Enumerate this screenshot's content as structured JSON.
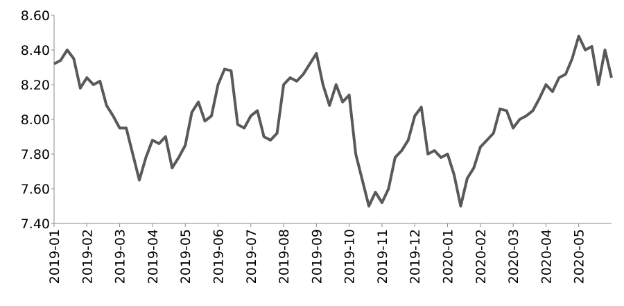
{
  "chart_data": {
    "type": "line",
    "categories": [
      "2019-01",
      null,
      null,
      null,
      null,
      "2019-02",
      null,
      null,
      null,
      null,
      "2019-03",
      null,
      null,
      null,
      null,
      "2019-04",
      null,
      null,
      null,
      null,
      "2019-05",
      null,
      null,
      null,
      null,
      "2019-06",
      null,
      null,
      null,
      null,
      "2019-07",
      null,
      null,
      null,
      null,
      "2019-08",
      null,
      null,
      null,
      null,
      "2019-09",
      null,
      null,
      null,
      null,
      "2019-10",
      null,
      null,
      null,
      null,
      "2019-11",
      null,
      null,
      null,
      null,
      "2019-12",
      null,
      null,
      null,
      null,
      "2020-01",
      null,
      null,
      null,
      null,
      "2020-02",
      null,
      null,
      null,
      null,
      "2020-03",
      null,
      null,
      null,
      null,
      "2020-04",
      null,
      null,
      null,
      null,
      "2020-05",
      null,
      null,
      null,
      null,
      null
    ],
    "values": [
      8.32,
      8.34,
      8.4,
      8.35,
      8.18,
      8.24,
      8.2,
      8.22,
      8.08,
      8.02,
      7.95,
      7.95,
      7.8,
      7.65,
      7.78,
      7.88,
      7.86,
      7.9,
      7.72,
      7.78,
      7.85,
      8.04,
      8.1,
      7.99,
      8.02,
      8.2,
      8.29,
      8.28,
      7.97,
      7.95,
      8.02,
      8.05,
      7.9,
      7.88,
      7.92,
      8.2,
      8.24,
      8.22,
      8.26,
      8.32,
      8.38,
      8.2,
      8.08,
      8.2,
      8.1,
      8.14,
      7.8,
      7.65,
      7.5,
      7.58,
      7.52,
      7.6,
      7.78,
      7.82,
      7.88,
      8.02,
      8.07,
      7.8,
      7.82,
      7.78,
      7.8,
      7.68,
      7.5,
      7.66,
      7.72,
      7.84,
      7.88,
      7.92,
      8.06,
      8.05,
      7.95,
      8.0,
      8.02,
      8.05,
      8.12,
      8.2,
      8.16,
      8.24,
      8.26,
      8.35,
      8.48,
      8.4,
      8.42,
      8.2,
      8.4,
      8.24
    ],
    "color": "#595959",
    "ylim": [
      7.4,
      8.6
    ],
    "yticks": [
      {
        "value": 7.4,
        "label": "7.40"
      },
      {
        "value": 7.6,
        "label": "7.60"
      },
      {
        "value": 7.8,
        "label": "7.80"
      },
      {
        "value": 8.0,
        "label": "8.00"
      },
      {
        "value": 8.2,
        "label": "8.20"
      },
      {
        "value": 8.4,
        "label": "8.40"
      },
      {
        "value": 8.6,
        "label": "8.60"
      }
    ]
  }
}
